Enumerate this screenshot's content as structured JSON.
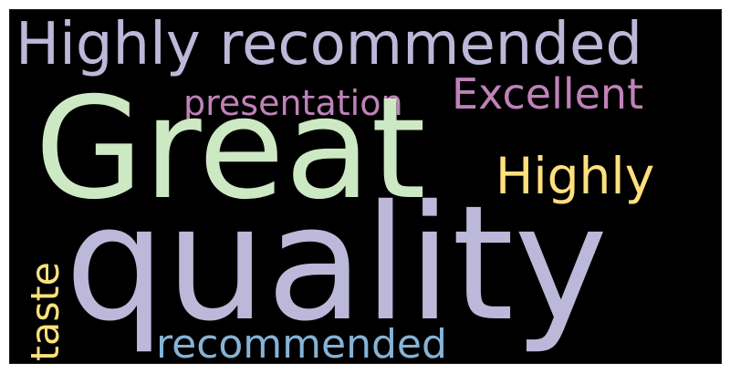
{
  "wordcloud": {
    "background": "#000000",
    "words": [
      {
        "key": "highly_recommended",
        "text": "Highly recommended",
        "color": "#bcb8d9"
      },
      {
        "key": "excellent",
        "text": "Excellent",
        "color": "#bf82b9"
      },
      {
        "key": "presentation",
        "text": "presentation",
        "color": "#bf82b9"
      },
      {
        "key": "great",
        "text": "Great",
        "color": "#cde9c3"
      },
      {
        "key": "highly",
        "text": "Highly",
        "color": "#fde07c"
      },
      {
        "key": "taste",
        "text": "taste",
        "color": "#fde07c"
      },
      {
        "key": "quality",
        "text": "quality",
        "color": "#bcb8d9"
      },
      {
        "key": "recommended",
        "text": "recommended",
        "color": "#85b3d6"
      }
    ]
  }
}
